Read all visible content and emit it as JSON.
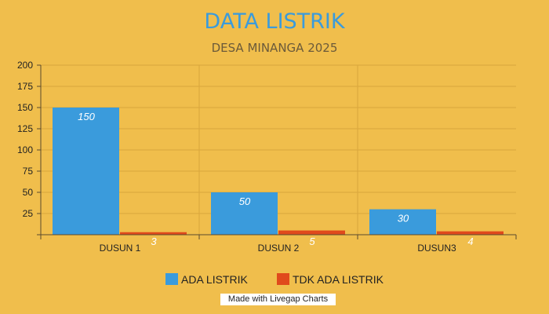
{
  "chart_data": {
    "type": "bar",
    "title": "DATA LISTRIK",
    "subtitle": "DESA MINANGA 2025",
    "categories": [
      "DUSUN 1",
      "DUSUN 2",
      "DUSUN3"
    ],
    "series": [
      {
        "name": "ADA LISTRIK",
        "values": [
          150,
          50,
          30
        ],
        "color": "#3A9BDC"
      },
      {
        "name": "TDK ADA LISTRIK",
        "values": [
          3,
          5,
          4
        ],
        "color": "#E04A1C"
      }
    ],
    "ylim": [
      0,
      200
    ],
    "yticks": [
      0,
      25,
      50,
      75,
      100,
      125,
      150,
      175,
      200
    ],
    "ytick_labels": [
      "",
      "25",
      "50",
      "75",
      "100",
      "125",
      "150",
      "175",
      "200"
    ],
    "grid": true,
    "legend": "bottom",
    "title_color": "#3A9BDC",
    "subtitle_color": "#6B5A3A"
  },
  "watermark": "Made with Livegap Charts"
}
